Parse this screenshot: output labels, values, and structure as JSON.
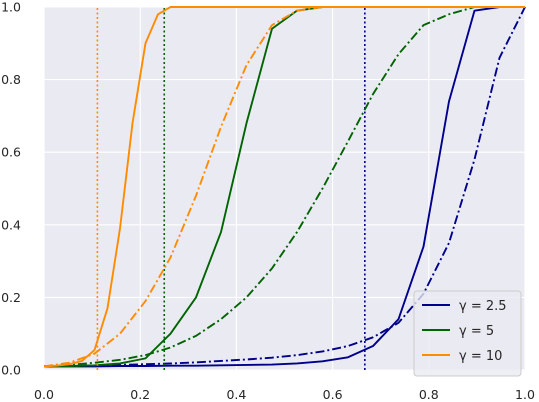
{
  "chart_data": {
    "type": "line",
    "title": "",
    "xlabel": "",
    "ylabel": "",
    "xlim": [
      0.0,
      1.0
    ],
    "ylim": [
      0.0,
      1.0
    ],
    "grid": true,
    "legend_placement": "bottom-right",
    "x_ticks": [
      "0.0",
      "0.2",
      "0.4",
      "0.6",
      "0.8",
      "1.0"
    ],
    "y_ticks": [
      "0.0",
      "0.2",
      "0.4",
      "0.6",
      "0.8",
      "1.0"
    ],
    "series": [
      {
        "name": "γ = 2.5",
        "color": "#00008b",
        "style": "solid",
        "x": [
          0.0,
          0.053,
          0.105,
          0.158,
          0.211,
          0.263,
          0.316,
          0.368,
          0.421,
          0.474,
          0.526,
          0.579,
          0.632,
          0.684,
          0.737,
          0.789,
          0.842,
          0.895,
          0.947,
          1.0
        ],
        "y": [
          0.01,
          0.01,
          0.01,
          0.011,
          0.011,
          0.012,
          0.012,
          0.013,
          0.014,
          0.015,
          0.018,
          0.024,
          0.035,
          0.066,
          0.14,
          0.34,
          0.74,
          0.99,
          1.0,
          1.0
        ]
      },
      {
        "name": "",
        "color": "#00008b",
        "style": "dashdot",
        "x": [
          0.0,
          0.053,
          0.105,
          0.158,
          0.211,
          0.263,
          0.316,
          0.368,
          0.421,
          0.474,
          0.526,
          0.579,
          0.632,
          0.684,
          0.737,
          0.789,
          0.842,
          0.895,
          0.947,
          1.0
        ],
        "y": [
          0.01,
          0.011,
          0.012,
          0.014,
          0.016,
          0.018,
          0.021,
          0.025,
          0.029,
          0.034,
          0.041,
          0.051,
          0.066,
          0.09,
          0.13,
          0.21,
          0.35,
          0.58,
          0.86,
          1.0
        ]
      },
      {
        "name": "",
        "color": "#00008b",
        "style": "dotted",
        "x": [
          0.667,
          0.667
        ],
        "y": [
          0.0,
          1.0
        ]
      },
      {
        "name": "γ = 5",
        "color": "#006400",
        "style": "solid",
        "x": [
          0.0,
          0.053,
          0.105,
          0.158,
          0.211,
          0.263,
          0.316,
          0.368,
          0.421,
          0.474,
          0.526,
          0.579,
          0.632,
          0.684,
          0.737,
          0.789,
          0.842,
          0.895,
          0.947,
          1.0
        ],
        "y": [
          0.01,
          0.011,
          0.013,
          0.018,
          0.032,
          0.1,
          0.2,
          0.38,
          0.68,
          0.94,
          0.99,
          1.0,
          1.0,
          1.0,
          1.0,
          1.0,
          1.0,
          1.0,
          1.0,
          1.0
        ]
      },
      {
        "name": "",
        "color": "#006400",
        "style": "dashdot",
        "x": [
          0.0,
          0.053,
          0.105,
          0.158,
          0.211,
          0.263,
          0.316,
          0.368,
          0.421,
          0.474,
          0.526,
          0.579,
          0.632,
          0.684,
          0.737,
          0.789,
          0.842,
          0.895,
          0.947,
          1.0
        ],
        "y": [
          0.01,
          0.014,
          0.02,
          0.028,
          0.041,
          0.062,
          0.094,
          0.14,
          0.2,
          0.28,
          0.38,
          0.5,
          0.63,
          0.76,
          0.87,
          0.95,
          0.98,
          1.0,
          1.0,
          1.0
        ]
      },
      {
        "name": "",
        "color": "#006400",
        "style": "dotted",
        "x": [
          0.25,
          0.25
        ],
        "y": [
          0.0,
          1.0
        ]
      },
      {
        "name": "γ = 10",
        "color": "#ff8c00",
        "style": "solid",
        "x": [
          0.0,
          0.026,
          0.053,
          0.079,
          0.105,
          0.132,
          0.158,
          0.184,
          0.211,
          0.237,
          0.263,
          0.316,
          0.368,
          0.421,
          0.474,
          0.526,
          0.579,
          0.632,
          0.684,
          0.737,
          0.789,
          0.842,
          0.895,
          0.947,
          1.0
        ],
        "y": [
          0.01,
          0.012,
          0.016,
          0.025,
          0.055,
          0.17,
          0.39,
          0.68,
          0.9,
          0.98,
          1.0,
          1.0,
          1.0,
          1.0,
          1.0,
          1.0,
          1.0,
          1.0,
          1.0,
          1.0,
          1.0,
          1.0,
          1.0,
          1.0,
          1.0
        ]
      },
      {
        "name": "",
        "color": "#ff8c00",
        "style": "dashdot",
        "x": [
          0.0,
          0.053,
          0.105,
          0.158,
          0.211,
          0.263,
          0.316,
          0.368,
          0.421,
          0.474,
          0.526,
          0.579,
          0.632,
          0.684,
          0.737,
          0.789,
          0.842,
          0.895,
          0.947,
          1.0
        ],
        "y": [
          0.01,
          0.02,
          0.045,
          0.1,
          0.19,
          0.31,
          0.48,
          0.67,
          0.84,
          0.95,
          0.99,
          1.0,
          1.0,
          1.0,
          1.0,
          1.0,
          1.0,
          1.0,
          1.0,
          1.0
        ]
      },
      {
        "name": "",
        "color": "#ff8c00",
        "style": "dotted",
        "x": [
          0.111,
          0.111
        ],
        "y": [
          0.0,
          1.0
        ]
      }
    ]
  }
}
